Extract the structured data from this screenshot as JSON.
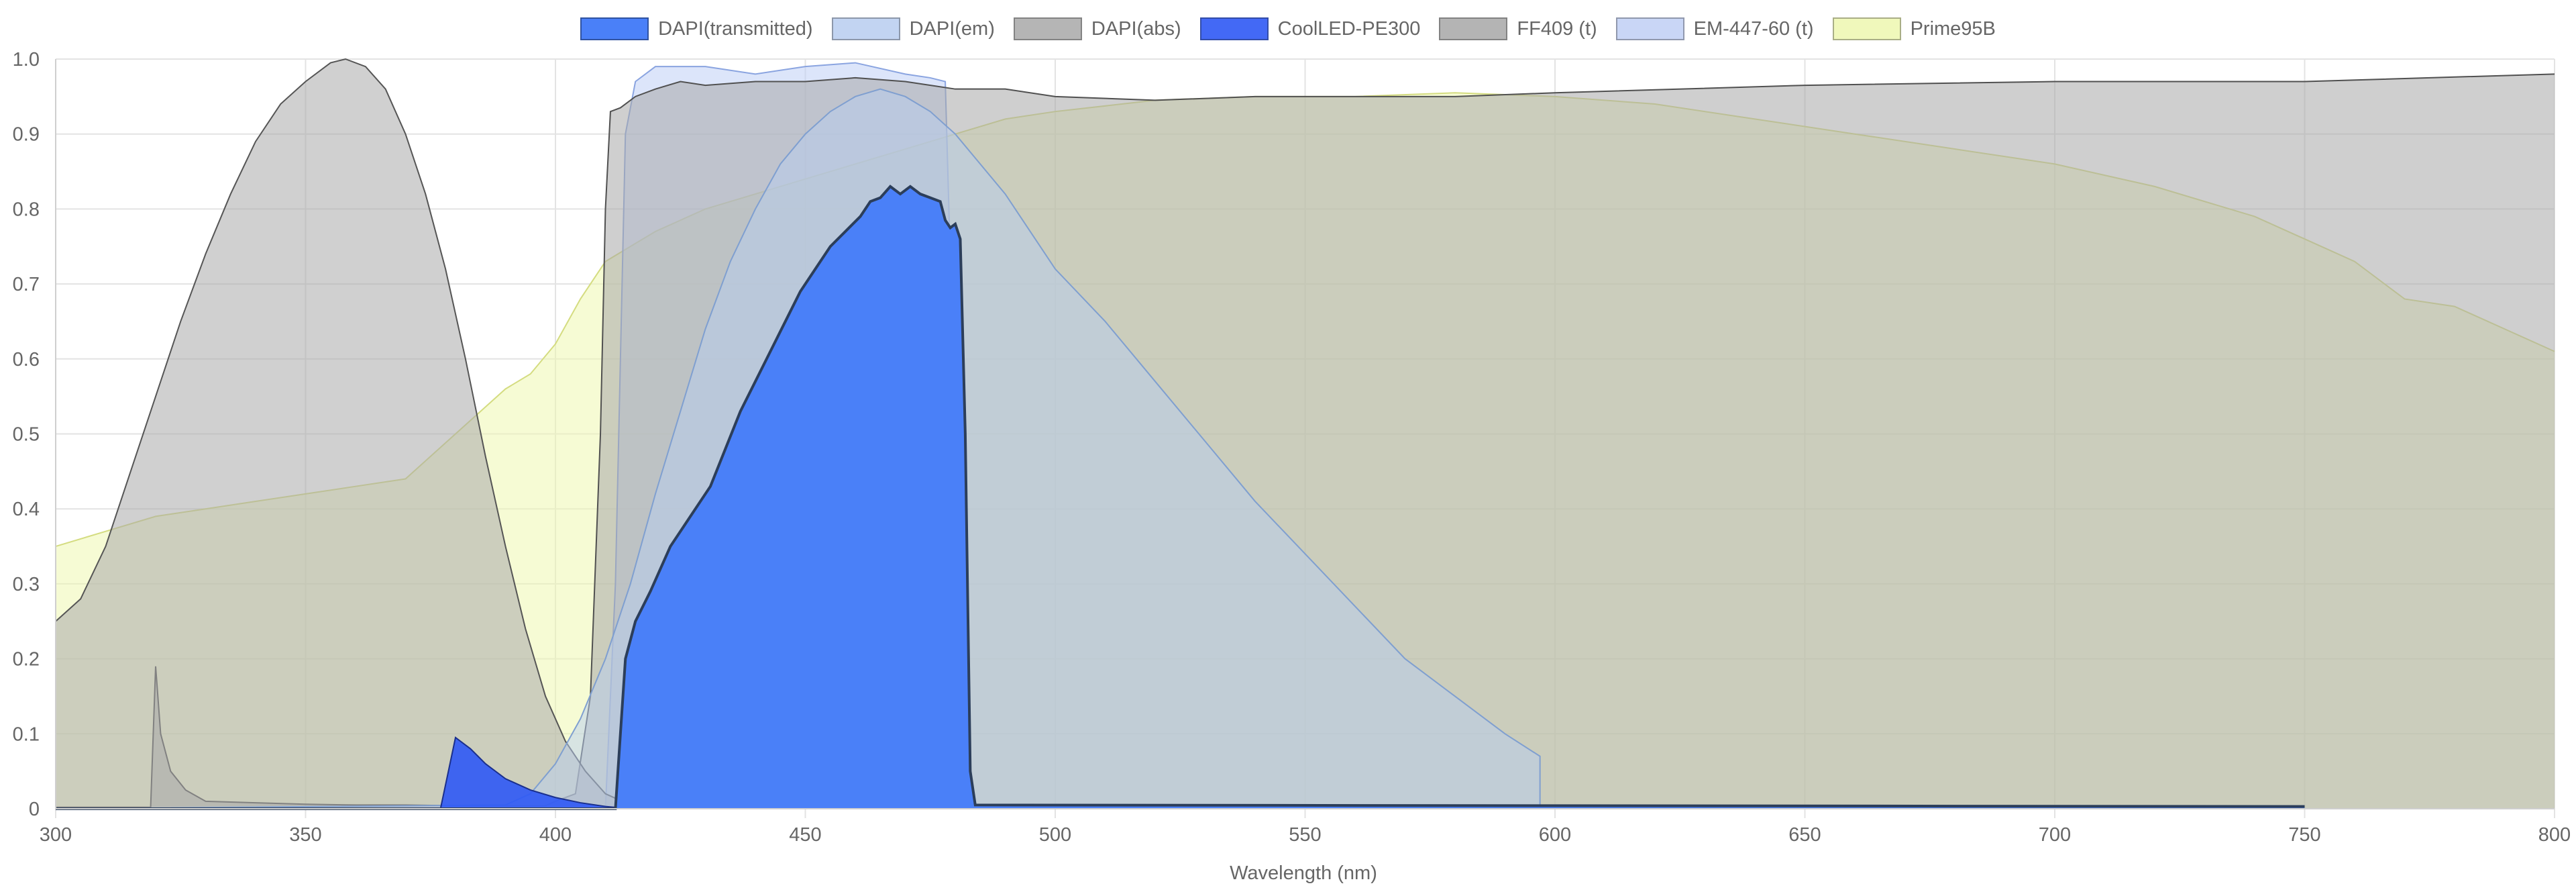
{
  "chart_data": {
    "type": "area",
    "xlabel": "Wavelength (nm)",
    "ylabel": "",
    "xlim": [
      300,
      800
    ],
    "ylim": [
      0,
      1
    ],
    "xticks": [
      "300",
      "350",
      "400",
      "450",
      "500",
      "550",
      "600",
      "650",
      "700",
      "750",
      "800"
    ],
    "yticks": [
      "0",
      "0.1",
      "0.2",
      "0.3",
      "0.4",
      "0.5",
      "0.6",
      "0.7",
      "0.8",
      "0.9",
      "1.0"
    ],
    "grid": true,
    "legend_position": "top-center",
    "series": [
      {
        "name": "DAPI(transmitted)",
        "fill": "#4a80f8",
        "stroke": "#2c3e5a",
        "opacity": 1.0,
        "points": [
          [
            300,
            0
          ],
          [
            412,
            0
          ],
          [
            414,
            0.2
          ],
          [
            416,
            0.25
          ],
          [
            419,
            0.29
          ],
          [
            423,
            0.35
          ],
          [
            427,
            0.39
          ],
          [
            431,
            0.43
          ],
          [
            434,
            0.48
          ],
          [
            437,
            0.53
          ],
          [
            440,
            0.57
          ],
          [
            443,
            0.61
          ],
          [
            446,
            0.65
          ],
          [
            449,
            0.69
          ],
          [
            452,
            0.72
          ],
          [
            455,
            0.75
          ],
          [
            458,
            0.77
          ],
          [
            461,
            0.79
          ],
          [
            463,
            0.81
          ],
          [
            465,
            0.815
          ],
          [
            467,
            0.83
          ],
          [
            469,
            0.82
          ],
          [
            471,
            0.83
          ],
          [
            473,
            0.82
          ],
          [
            475,
            0.815
          ],
          [
            477,
            0.81
          ],
          [
            478,
            0.785
          ],
          [
            479,
            0.775
          ],
          [
            480,
            0.78
          ],
          [
            481,
            0.76
          ],
          [
            482,
            0.5
          ],
          [
            483,
            0.05
          ],
          [
            484,
            0.005
          ],
          [
            750,
            0.003
          ]
        ]
      },
      {
        "name": "DAPI(em)",
        "fill": "#b8cdf0",
        "stroke": "#7f9fd0",
        "opacity": 0.5,
        "points": [
          [
            300,
            0
          ],
          [
            390,
            0.005
          ],
          [
            395,
            0.02
          ],
          [
            400,
            0.06
          ],
          [
            405,
            0.12
          ],
          [
            410,
            0.2
          ],
          [
            415,
            0.3
          ],
          [
            420,
            0.42
          ],
          [
            425,
            0.53
          ],
          [
            430,
            0.64
          ],
          [
            435,
            0.73
          ],
          [
            440,
            0.8
          ],
          [
            445,
            0.86
          ],
          [
            450,
            0.9
          ],
          [
            455,
            0.93
          ],
          [
            460,
            0.95
          ],
          [
            465,
            0.96
          ],
          [
            470,
            0.95
          ],
          [
            475,
            0.93
          ],
          [
            480,
            0.9
          ],
          [
            485,
            0.86
          ],
          [
            490,
            0.82
          ],
          [
            495,
            0.77
          ],
          [
            500,
            0.72
          ],
          [
            510,
            0.65
          ],
          [
            520,
            0.57
          ],
          [
            530,
            0.49
          ],
          [
            540,
            0.41
          ],
          [
            550,
            0.34
          ],
          [
            560,
            0.27
          ],
          [
            570,
            0.2
          ],
          [
            580,
            0.15
          ],
          [
            590,
            0.1
          ],
          [
            597,
            0.07
          ],
          [
            597,
            0
          ]
        ]
      },
      {
        "name": "DAPI(abs)",
        "fill": "#a9a9a9",
        "stroke": "#555555",
        "opacity": 0.55,
        "points": [
          [
            300,
            0.25
          ],
          [
            305,
            0.28
          ],
          [
            310,
            0.35
          ],
          [
            315,
            0.45
          ],
          [
            320,
            0.55
          ],
          [
            325,
            0.65
          ],
          [
            330,
            0.74
          ],
          [
            335,
            0.82
          ],
          [
            340,
            0.89
          ],
          [
            345,
            0.94
          ],
          [
            350,
            0.97
          ],
          [
            355,
            0.995
          ],
          [
            358,
            1.0
          ],
          [
            362,
            0.99
          ],
          [
            366,
            0.96
          ],
          [
            370,
            0.9
          ],
          [
            374,
            0.82
          ],
          [
            378,
            0.72
          ],
          [
            382,
            0.6
          ],
          [
            386,
            0.47
          ],
          [
            390,
            0.35
          ],
          [
            394,
            0.24
          ],
          [
            398,
            0.15
          ],
          [
            402,
            0.09
          ],
          [
            406,
            0.05
          ],
          [
            410,
            0.02
          ],
          [
            415,
            0.005
          ],
          [
            420,
            0
          ]
        ]
      },
      {
        "name": "CoolLED-PE300",
        "fill": "#2f59f5",
        "stroke": "#1a2f8c",
        "opacity": 0.9,
        "points": [
          [
            300,
            0
          ],
          [
            377,
            0
          ],
          [
            380,
            0.095
          ],
          [
            383,
            0.08
          ],
          [
            386,
            0.06
          ],
          [
            390,
            0.04
          ],
          [
            395,
            0.025
          ],
          [
            400,
            0.015
          ],
          [
            405,
            0.008
          ],
          [
            410,
            0.003
          ],
          [
            415,
            0
          ],
          [
            750,
            0
          ]
        ]
      },
      {
        "name": "FF409 (t)",
        "fill": "#a8a8a8",
        "stroke": "#505050",
        "opacity": 0.55,
        "points": [
          [
            300,
            0.002
          ],
          [
            319,
            0.002
          ],
          [
            320,
            0.19
          ],
          [
            321,
            0.1
          ],
          [
            323,
            0.05
          ],
          [
            326,
            0.025
          ],
          [
            330,
            0.01
          ],
          [
            340,
            0.008
          ],
          [
            350,
            0.006
          ],
          [
            360,
            0.005
          ],
          [
            370,
            0.005
          ],
          [
            380,
            0.004
          ],
          [
            398,
            0.004
          ],
          [
            400,
            0.01
          ],
          [
            404,
            0.02
          ],
          [
            407,
            0.15
          ],
          [
            409,
            0.5
          ],
          [
            410,
            0.8
          ],
          [
            411,
            0.93
          ],
          [
            413,
            0.935
          ],
          [
            416,
            0.95
          ],
          [
            420,
            0.96
          ],
          [
            425,
            0.97
          ],
          [
            430,
            0.965
          ],
          [
            440,
            0.97
          ],
          [
            450,
            0.97
          ],
          [
            460,
            0.975
          ],
          [
            470,
            0.97
          ],
          [
            480,
            0.96
          ],
          [
            490,
            0.96
          ],
          [
            500,
            0.95
          ],
          [
            520,
            0.945
          ],
          [
            540,
            0.95
          ],
          [
            560,
            0.95
          ],
          [
            580,
            0.95
          ],
          [
            600,
            0.955
          ],
          [
            650,
            0.965
          ],
          [
            700,
            0.97
          ],
          [
            750,
            0.97
          ],
          [
            800,
            0.98
          ]
        ]
      },
      {
        "name": "EM-447-60 (t)",
        "fill": "#c0d0f5",
        "stroke": "#8aa4e0",
        "opacity": 0.55,
        "points": [
          [
            300,
            0
          ],
          [
            410,
            0
          ],
          [
            412,
            0.3
          ],
          [
            414,
            0.9
          ],
          [
            416,
            0.97
          ],
          [
            420,
            0.99
          ],
          [
            430,
            0.99
          ],
          [
            440,
            0.98
          ],
          [
            450,
            0.99
          ],
          [
            460,
            0.995
          ],
          [
            470,
            0.98
          ],
          [
            475,
            0.975
          ],
          [
            478,
            0.97
          ],
          [
            480,
            0.5
          ],
          [
            482,
            0
          ],
          [
            800,
            0
          ]
        ]
      },
      {
        "name": "Prime95B",
        "fill": "#eef7b0",
        "stroke": "#d4dc80",
        "opacity": 0.55,
        "points": [
          [
            300,
            0.35
          ],
          [
            310,
            0.37
          ],
          [
            320,
            0.39
          ],
          [
            330,
            0.4
          ],
          [
            340,
            0.41
          ],
          [
            350,
            0.42
          ],
          [
            360,
            0.43
          ],
          [
            370,
            0.44
          ],
          [
            380,
            0.5
          ],
          [
            390,
            0.56
          ],
          [
            395,
            0.58
          ],
          [
            400,
            0.62
          ],
          [
            405,
            0.68
          ],
          [
            410,
            0.73
          ],
          [
            420,
            0.77
          ],
          [
            430,
            0.8
          ],
          [
            440,
            0.82
          ],
          [
            450,
            0.84
          ],
          [
            460,
            0.86
          ],
          [
            470,
            0.88
          ],
          [
            480,
            0.9
          ],
          [
            490,
            0.92
          ],
          [
            500,
            0.93
          ],
          [
            520,
            0.945
          ],
          [
            540,
            0.95
          ],
          [
            560,
            0.95
          ],
          [
            580,
            0.955
          ],
          [
            600,
            0.95
          ],
          [
            620,
            0.94
          ],
          [
            640,
            0.92
          ],
          [
            660,
            0.9
          ],
          [
            680,
            0.88
          ],
          [
            700,
            0.86
          ],
          [
            720,
            0.83
          ],
          [
            740,
            0.79
          ],
          [
            760,
            0.73
          ],
          [
            770,
            0.68
          ],
          [
            780,
            0.67
          ],
          [
            790,
            0.64
          ],
          [
            800,
            0.61
          ]
        ]
      }
    ]
  }
}
